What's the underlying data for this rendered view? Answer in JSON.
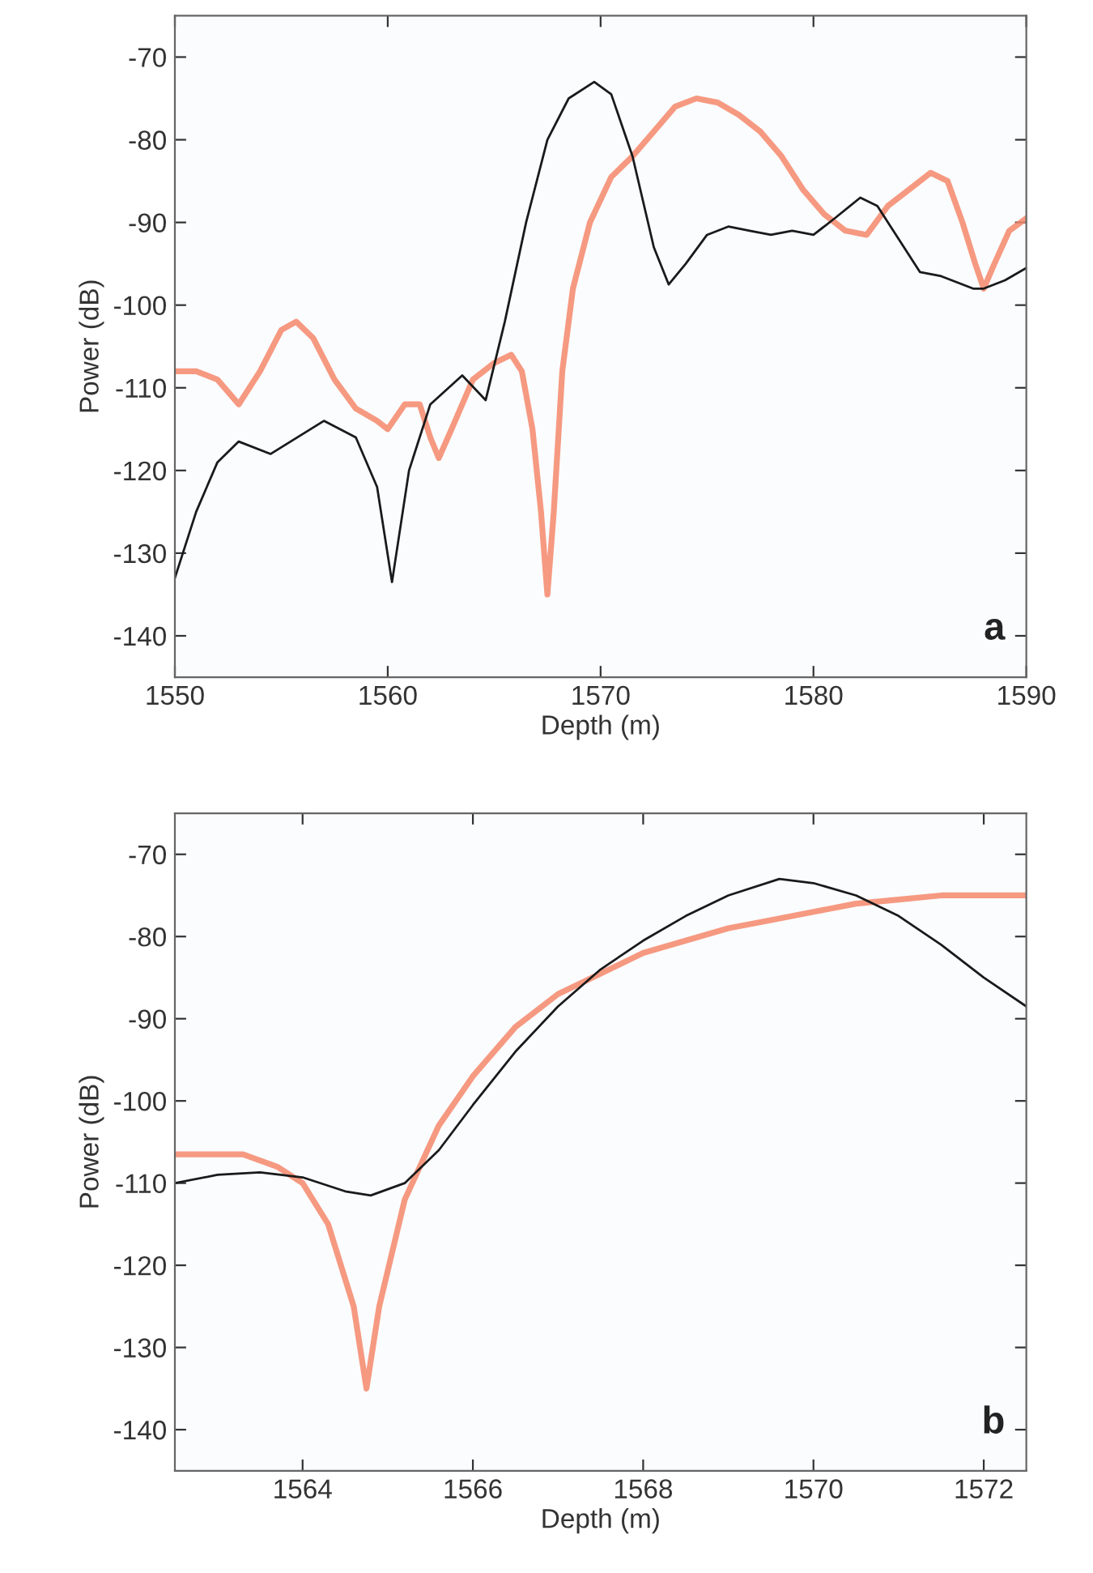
{
  "chart_data": [
    {
      "type": "line",
      "xlabel": "Depth (m)",
      "ylabel": "Power (dB)",
      "annotations": [
        "a"
      ],
      "xlim": [
        1550,
        1590
      ],
      "xticks": [
        1550,
        1560,
        1570,
        1580,
        1590
      ],
      "ylim": [
        -145,
        -65
      ],
      "yticks": [
        -140,
        -130,
        -120,
        -110,
        -100,
        -90,
        -80,
        -70
      ],
      "grid": false,
      "legend": false,
      "series": [
        {
          "color": "#f4876b",
          "x": [
            1550,
            1551,
            1552,
            1553,
            1554,
            1555,
            1555.7,
            1556.5,
            1557.5,
            1558.5,
            1559.5,
            1560,
            1560.8,
            1561.5,
            1562,
            1562.4,
            1563,
            1564,
            1565,
            1565.8,
            1566.3,
            1566.8,
            1567.2,
            1567.5,
            1567.8,
            1568.2,
            1568.7,
            1569.5,
            1570.5,
            1571.5,
            1572.5,
            1573.5,
            1574.5,
            1575.5,
            1576.5,
            1577.5,
            1578.5,
            1579.5,
            1580.5,
            1581.5,
            1582.5,
            1583.5,
            1584.5,
            1585.5,
            1586.3,
            1587,
            1587.6,
            1588,
            1588.5,
            1589.2,
            1590
          ],
          "values": [
            -108,
            -108,
            -109,
            -112,
            -108,
            -103,
            -102,
            -104,
            -109,
            -112.5,
            -114,
            -115,
            -112,
            -112,
            -116,
            -118.5,
            -115,
            -109,
            -107,
            -106,
            -108,
            -115,
            -125,
            -135,
            -125,
            -108,
            -98,
            -90,
            -84.5,
            -82,
            -79,
            -76,
            -75,
            -75.5,
            -77,
            -79,
            -82,
            -86,
            -89,
            -91,
            -91.5,
            -88,
            -86,
            -84,
            -85,
            -90,
            -95,
            -98,
            -95,
            -91,
            -89.5
          ]
        },
        {
          "color": "#1a1a1a",
          "x": [
            1550,
            1551,
            1552,
            1553,
            1554.5,
            1557,
            1558.5,
            1559.5,
            1560.2,
            1561,
            1562,
            1563.5,
            1564.6,
            1565.5,
            1566.5,
            1567.5,
            1568.5,
            1569.7,
            1570.5,
            1571.5,
            1572.5,
            1573.2,
            1574,
            1575,
            1576,
            1577,
            1578,
            1579,
            1580,
            1581,
            1582.2,
            1583,
            1584,
            1585,
            1586,
            1587.5,
            1588,
            1589,
            1590
          ],
          "values": [
            -133,
            -125,
            -119,
            -116.5,
            -118,
            -114,
            -116,
            -122,
            -133.5,
            -120,
            -112,
            -108.5,
            -111.5,
            -102,
            -90,
            -80,
            -75,
            -73,
            -74.5,
            -82,
            -93,
            -97.5,
            -95,
            -91.5,
            -90.5,
            -91,
            -91.5,
            -91,
            -91.5,
            -89.5,
            -87,
            -88,
            -92,
            -96,
            -96.5,
            -98,
            -98,
            -97,
            -95.5
          ]
        }
      ]
    },
    {
      "type": "line",
      "xlabel": "Depth (m)",
      "ylabel": "Power (dB)",
      "annotations": [
        "b"
      ],
      "xlim": [
        1562.5,
        1572.5
      ],
      "xticks": [
        1564,
        1566,
        1568,
        1570,
        1572
      ],
      "ylim": [
        -145,
        -65
      ],
      "yticks": [
        -140,
        -130,
        -120,
        -110,
        -100,
        -90,
        -80,
        -70
      ],
      "grid": false,
      "legend": false,
      "series": [
        {
          "color": "#f4876b",
          "x": [
            1562.5,
            1563.3,
            1563.7,
            1564,
            1564.3,
            1564.6,
            1564.75,
            1564.9,
            1565.2,
            1565.6,
            1566,
            1566.5,
            1567,
            1567.5,
            1568,
            1568.5,
            1569,
            1569.5,
            1570,
            1570.5,
            1571,
            1571.5,
            1572,
            1572.5
          ],
          "values": [
            -106.5,
            -106.5,
            -108,
            -110,
            -115,
            -125,
            -135,
            -125,
            -112,
            -103,
            -97,
            -91,
            -87,
            -84.5,
            -82,
            -80.5,
            -79,
            -78,
            -77,
            -76,
            -75.5,
            -75,
            -75,
            -75
          ]
        },
        {
          "color": "#1a1a1a",
          "x": [
            1562.5,
            1563,
            1563.5,
            1564,
            1564.5,
            1564.8,
            1565.2,
            1565.6,
            1566,
            1566.5,
            1567,
            1567.5,
            1568,
            1568.5,
            1569,
            1569.6,
            1570,
            1570.5,
            1571,
            1571.5,
            1572,
            1572.5
          ],
          "values": [
            -110,
            -109,
            -108.7,
            -109.3,
            -111,
            -111.5,
            -110,
            -106,
            -100.5,
            -94,
            -88.5,
            -84,
            -80.5,
            -77.5,
            -75,
            -73,
            -73.5,
            -75,
            -77.5,
            -81,
            -85,
            -88.5
          ]
        }
      ]
    }
  ]
}
